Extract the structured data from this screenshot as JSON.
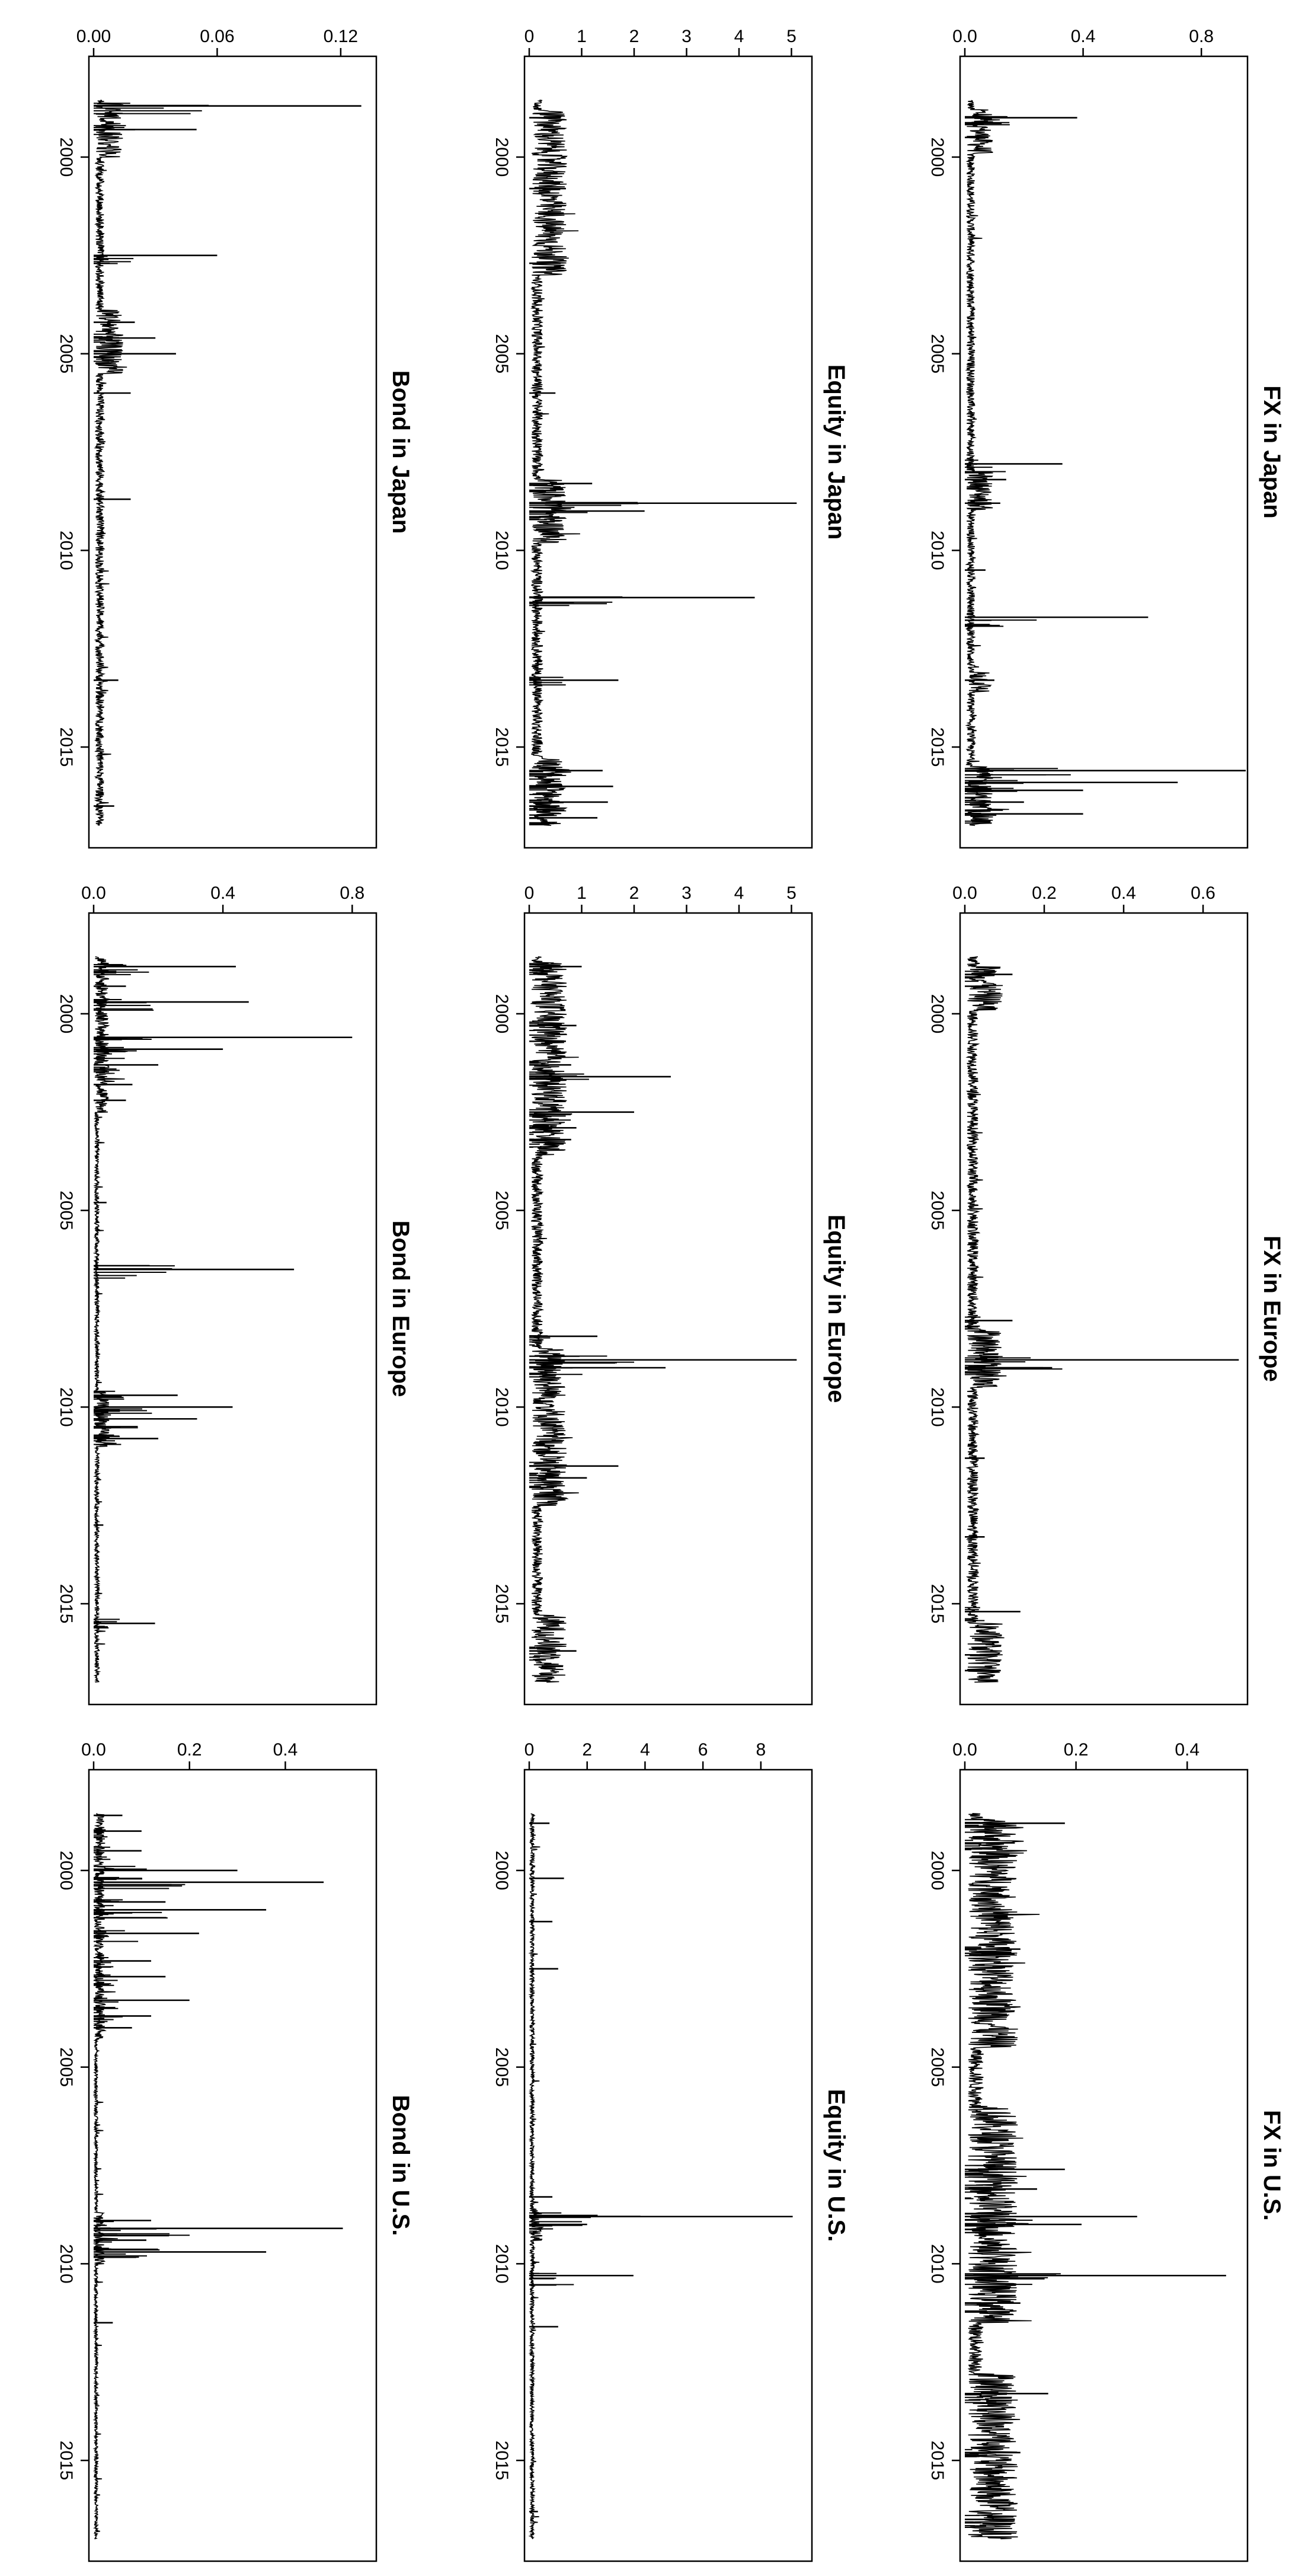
{
  "figure": {
    "orientation": "rotated 90 degrees clockwise"
  },
  "chart_data": [
    {
      "type": "line",
      "title": "FX in Japan",
      "xlabel": "",
      "ylabel": "",
      "xlim": [
        1997.8,
        2017.2
      ],
      "ylim": [
        0,
        0.94
      ],
      "xticks": [
        "2000",
        "2005",
        "2010",
        "2015"
      ],
      "yticks": [
        "0.0",
        "0.4",
        "0.8"
      ],
      "ytick_values": [
        0.0,
        0.4,
        0.8
      ],
      "baseline": 0.02,
      "spikes": [
        [
          1999.0,
          0.38
        ],
        [
          1999.5,
          0.08
        ],
        [
          2007.8,
          0.33
        ],
        [
          2008.2,
          0.14
        ],
        [
          2008.8,
          0.12
        ],
        [
          2010.5,
          0.07
        ],
        [
          2011.7,
          0.62
        ],
        [
          2013.3,
          0.1
        ],
        [
          2015.6,
          0.95
        ],
        [
          2015.9,
          0.72
        ],
        [
          2016.1,
          0.4
        ],
        [
          2016.4,
          0.2
        ],
        [
          2016.7,
          0.4
        ]
      ],
      "busy": [
        [
          1998.8,
          1999.9
        ],
        [
          2008.0,
          2009.0
        ],
        [
          2013.1,
          2013.6
        ],
        [
          2015.5,
          2017.0
        ]
      ]
    },
    {
      "type": "line",
      "title": "Equity in Japan",
      "xlabel": "",
      "ylabel": "",
      "xlim": [
        1997.8,
        2017.2
      ],
      "ylim": [
        0,
        5.3
      ],
      "xticks": [
        "2000",
        "2005",
        "2010",
        "2015"
      ],
      "yticks": [
        "0",
        "1",
        "2",
        "3",
        "4",
        "5"
      ],
      "ytick_values": [
        0,
        1,
        2,
        3,
        4,
        5
      ],
      "baseline": 0.15,
      "spikes": [
        [
          1999.0,
          0.6
        ],
        [
          2000.8,
          0.7
        ],
        [
          2002.7,
          0.6
        ],
        [
          2006.0,
          0.5
        ],
        [
          2008.3,
          1.2
        ],
        [
          2008.8,
          5.1
        ],
        [
          2009.0,
          2.2
        ],
        [
          2011.2,
          4.3
        ],
        [
          2013.3,
          1.7
        ],
        [
          2015.6,
          1.4
        ],
        [
          2016.0,
          1.6
        ],
        [
          2016.4,
          1.5
        ],
        [
          2016.8,
          1.3
        ]
      ],
      "busy": [
        [
          1998.8,
          2003.0
        ],
        [
          2008.2,
          2009.8
        ],
        [
          2015.3,
          2017.0
        ]
      ]
    },
    {
      "type": "line",
      "title": "Bond in Japan",
      "xlabel": "",
      "ylabel": "",
      "xlim": [
        1997.8,
        2017.2
      ],
      "ylim": [
        0,
        0.135
      ],
      "xticks": [
        "2000",
        "2005",
        "2010",
        "2015"
      ],
      "yticks": [
        "0.00",
        "0.06",
        "0.12"
      ],
      "ytick_values": [
        0.0,
        0.06,
        0.12
      ],
      "baseline": 0.003,
      "spikes": [
        [
          1998.7,
          0.13
        ],
        [
          1999.3,
          0.05
        ],
        [
          2002.5,
          0.06
        ],
        [
          2004.2,
          0.02
        ],
        [
          2004.6,
          0.03
        ],
        [
          2005.0,
          0.04
        ],
        [
          2006.0,
          0.018
        ],
        [
          2008.7,
          0.018
        ],
        [
          2013.3,
          0.012
        ],
        [
          2016.5,
          0.01
        ]
      ],
      "busy": [
        [
          1998.6,
          2000.0
        ],
        [
          2003.9,
          2005.5
        ]
      ]
    },
    {
      "type": "line",
      "title": "FX in Europe",
      "xlabel": "",
      "ylabel": "",
      "xlim": [
        1997.8,
        2017.2
      ],
      "ylim": [
        0,
        0.7
      ],
      "xticks": [
        "2000",
        "2005",
        "2010",
        "2015"
      ],
      "yticks": [
        "0.0",
        "0.2",
        "0.4",
        "0.6"
      ],
      "ytick_values": [
        0.0,
        0.2,
        0.4,
        0.6
      ],
      "baseline": 0.02,
      "spikes": [
        [
          1999.0,
          0.12
        ],
        [
          1999.3,
          0.06
        ],
        [
          2007.8,
          0.12
        ],
        [
          2008.8,
          0.69
        ],
        [
          2009.0,
          0.22
        ],
        [
          2011.3,
          0.05
        ],
        [
          2013.3,
          0.05
        ],
        [
          2015.2,
          0.14
        ],
        [
          2016.3,
          0.08
        ],
        [
          2016.7,
          0.09
        ]
      ],
      "busy": [
        [
          1998.8,
          1999.9
        ],
        [
          2008.0,
          2009.5
        ],
        [
          2015.5,
          2017.0
        ]
      ]
    },
    {
      "type": "line",
      "title": "Equity in Europe",
      "xlabel": "",
      "ylabel": "",
      "xlim": [
        1997.8,
        2017.2
      ],
      "ylim": [
        0,
        5.3
      ],
      "xticks": [
        "2000",
        "2005",
        "2010",
        "2015"
      ],
      "yticks": [
        "0",
        "1",
        "2",
        "3",
        "4",
        "5"
      ],
      "ytick_values": [
        0,
        1,
        2,
        3,
        4,
        5
      ],
      "baseline": 0.15,
      "spikes": [
        [
          1998.8,
          1.0
        ],
        [
          2000.3,
          0.9
        ],
        [
          2000.7,
          0.7
        ],
        [
          2001.3,
          0.8
        ],
        [
          2001.6,
          2.7
        ],
        [
          2002.5,
          2.0
        ],
        [
          2002.9,
          0.9
        ],
        [
          2003.2,
          0.8
        ],
        [
          2008.2,
          1.3
        ],
        [
          2008.8,
          5.1
        ],
        [
          2009.0,
          2.6
        ],
        [
          2011.5,
          1.7
        ],
        [
          2011.8,
          1.1
        ],
        [
          2016.2,
          0.9
        ]
      ],
      "busy": [
        [
          1998.7,
          2003.6
        ],
        [
          2008.5,
          2012.5
        ],
        [
          2015.3,
          2017.0
        ]
      ]
    },
    {
      "type": "line",
      "title": "Bond in Europe",
      "xlabel": "",
      "ylabel": "",
      "xlim": [
        1997.8,
        2017.2
      ],
      "ylim": [
        0,
        0.86
      ],
      "xticks": [
        "2000",
        "2005",
        "2010",
        "2015"
      ],
      "yticks": [
        "0.0",
        "0.4",
        "0.8"
      ],
      "ytick_values": [
        0.0,
        0.4,
        0.8
      ],
      "baseline": 0.01,
      "spikes": [
        [
          1998.8,
          0.44
        ],
        [
          1999.3,
          0.1
        ],
        [
          1999.7,
          0.48
        ],
        [
          2000.6,
          0.8
        ],
        [
          2000.9,
          0.4
        ],
        [
          2001.3,
          0.2
        ],
        [
          2001.8,
          0.12
        ],
        [
          2002.2,
          0.1
        ],
        [
          2004.8,
          0.04
        ],
        [
          2006.5,
          0.62
        ],
        [
          2009.7,
          0.26
        ],
        [
          2010.0,
          0.43
        ],
        [
          2010.3,
          0.32
        ],
        [
          2010.8,
          0.2
        ],
        [
          2013.0,
          0.03
        ],
        [
          2015.5,
          0.19
        ]
      ],
      "busy": [
        [
          1998.6,
          2002.5
        ],
        [
          2009.6,
          2011.0
        ]
      ]
    },
    {
      "type": "line",
      "title": "FX in U.S.",
      "xlabel": "",
      "ylabel": "",
      "xlim": [
        1997.8,
        2017.2
      ],
      "ylim": [
        0,
        0.5
      ],
      "xticks": [
        "2000",
        "2005",
        "2010",
        "2015"
      ],
      "yticks": [
        "0.0",
        "0.2",
        "0.4"
      ],
      "ytick_values": [
        0.0,
        0.2,
        0.4
      ],
      "baseline": 0.02,
      "spikes": [
        [
          1998.8,
          0.18
        ],
        [
          1999.3,
          0.09
        ],
        [
          2002.0,
          0.1
        ],
        [
          2007.6,
          0.18
        ],
        [
          2008.1,
          0.13
        ],
        [
          2008.8,
          0.31
        ],
        [
          2009.0,
          0.21
        ],
        [
          2010.3,
          0.47
        ],
        [
          2011.0,
          0.1
        ],
        [
          2013.3,
          0.15
        ],
        [
          2014.8,
          0.1
        ],
        [
          2016.5,
          0.09
        ]
      ],
      "busy": [
        [
          1998.7,
          2004.5
        ],
        [
          2006.0,
          2011.5
        ],
        [
          2012.8,
          2017.0
        ]
      ]
    },
    {
      "type": "line",
      "title": "Equity in U.S.",
      "xlabel": "",
      "ylabel": "",
      "xlim": [
        1997.8,
        2017.2
      ],
      "ylim": [
        0,
        9.6
      ],
      "xticks": [
        "2000",
        "2005",
        "2010",
        "2015"
      ],
      "yticks": [
        "0",
        "2",
        "4",
        "6",
        "8"
      ],
      "ytick_values": [
        0,
        2,
        4,
        6,
        8
      ],
      "baseline": 0.1,
      "spikes": [
        [
          1998.8,
          0.7
        ],
        [
          2000.2,
          1.2
        ],
        [
          2001.3,
          0.8
        ],
        [
          2002.5,
          1.0
        ],
        [
          2008.3,
          0.8
        ],
        [
          2008.8,
          9.1
        ],
        [
          2009.0,
          2.0
        ],
        [
          2010.3,
          3.6
        ],
        [
          2011.6,
          1.0
        ],
        [
          2016.3,
          0.3
        ]
      ],
      "busy": [
        [
          2008.6,
          2009.4
        ]
      ]
    },
    {
      "type": "line",
      "title": "Bond in U.S.",
      "xlabel": "",
      "ylabel": "",
      "xlim": [
        1997.8,
        2017.2
      ],
      "ylim": [
        0,
        0.58
      ],
      "xticks": [
        "2000",
        "2005",
        "2010",
        "2015"
      ],
      "yticks": [
        "0.0",
        "0.2",
        "0.4"
      ],
      "ytick_values": [
        0.0,
        0.2,
        0.4
      ],
      "baseline": 0.005,
      "spikes": [
        [
          1998.6,
          0.06
        ],
        [
          1999.0,
          0.1
        ],
        [
          1999.5,
          0.1
        ],
        [
          2000.0,
          0.3
        ],
        [
          2000.3,
          0.48
        ],
        [
          2000.8,
          0.15
        ],
        [
          2001.0,
          0.36
        ],
        [
          2001.6,
          0.22
        ],
        [
          2002.3,
          0.12
        ],
        [
          2002.7,
          0.15
        ],
        [
          2003.3,
          0.2
        ],
        [
          2003.7,
          0.12
        ],
        [
          2004.0,
          0.08
        ],
        [
          2008.9,
          0.12
        ],
        [
          2009.1,
          0.52
        ],
        [
          2009.4,
          0.11
        ],
        [
          2009.7,
          0.36
        ],
        [
          2011.5,
          0.04
        ]
      ],
      "busy": [
        [
          1998.5,
          2004.3
        ],
        [
          2008.7,
          2010.0
        ]
      ]
    }
  ]
}
